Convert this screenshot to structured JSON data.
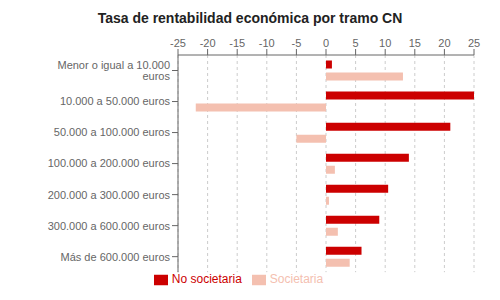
{
  "chart_data": {
    "type": "bar",
    "orientation": "horizontal",
    "title": "Tasa de rentabilidad económica por tramo CN",
    "categories": [
      "Menor o igual a 10.000 euros",
      "10.000 a 50.000 euros",
      "50.000 a 100.000 euros",
      "100.000 a 200.000 euros",
      "200.000 a 300.000 euros",
      "300.000 a 600.000 euros",
      "Más de 600.000 euros"
    ],
    "series": [
      {
        "name": "No societaria",
        "color": "#cc0000",
        "values": [
          1.0,
          25.0,
          21.0,
          14.0,
          10.5,
          9.0,
          6.0
        ]
      },
      {
        "name": "Societaria",
        "color": "#f4c0b0",
        "values": [
          13.0,
          -22.0,
          -5.0,
          1.5,
          0.5,
          2.0,
          4.0
        ]
      }
    ],
    "xlim": [
      -25,
      25
    ],
    "xticks": [
      -25,
      -20,
      -15,
      -10,
      -5,
      0,
      5,
      10,
      15,
      20,
      25
    ],
    "grid": true,
    "legend": "bottom"
  }
}
